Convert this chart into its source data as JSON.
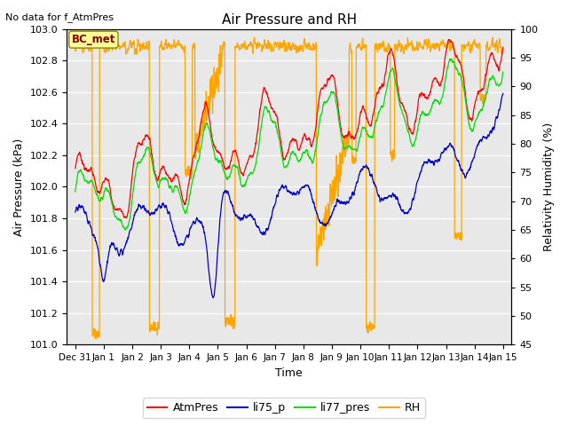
{
  "title": "Air Pressure and RH",
  "subtitle": "No data for f_AtmPres",
  "xlabel": "Time",
  "ylabel_left": "Air Pressure (kPa)",
  "ylabel_right": "Relativity Humidity (%)",
  "ylim_left": [
    101.0,
    103.0
  ],
  "ylim_right": [
    45,
    100
  ],
  "yticks_left": [
    101.0,
    101.2,
    101.4,
    101.6,
    101.8,
    102.0,
    102.2,
    102.4,
    102.6,
    102.8,
    103.0
  ],
  "yticks_right": [
    45,
    50,
    55,
    60,
    65,
    70,
    75,
    80,
    85,
    90,
    95,
    100
  ],
  "xtick_labels": [
    "Dec 31",
    "Jan 1",
    "Jan 2",
    "Jan 3",
    "Jan 4",
    "Jan 5",
    "Jan 6",
    "Jan 7",
    "Jan 8",
    "Jan 9",
    "Jan 10",
    "Jan 11",
    "Jan 12",
    "Jan 13",
    "Jan 14",
    "Jan 15"
  ],
  "xtick_positions": [
    0,
    1,
    2,
    3,
    4,
    5,
    6,
    7,
    8,
    9,
    10,
    11,
    12,
    13,
    14,
    15
  ],
  "bc_met_box_text": "BC_met",
  "colors": {
    "AtmPres": "#ff0000",
    "li75_p": "#0000cc",
    "li77_pres": "#00dd00",
    "RH": "#ffa500",
    "plot_bg": "#e8e8e8"
  },
  "legend_labels": [
    "AtmPres",
    "li75_p",
    "li77_pres",
    "RH"
  ]
}
